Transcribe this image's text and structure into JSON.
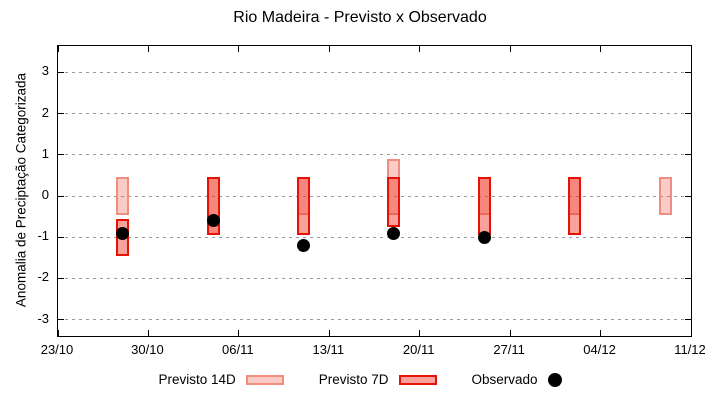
{
  "chart_data": {
    "type": "candlestick",
    "title": "Rio Madeira - Previsto x Observado",
    "ylabel": "Anomalia de Preciptação Categorizada",
    "xlabel": "",
    "x_ticks": [
      "23/10",
      "30/10",
      "06/11",
      "13/11",
      "20/11",
      "27/11",
      "04/12",
      "11/12"
    ],
    "x_tick_interval_days": 7,
    "y_ticks": [
      {
        "value": 3,
        "label": "3"
      },
      {
        "value": 2,
        "label": "2"
      },
      {
        "value": 1,
        "label": "1"
      },
      {
        "value": 0,
        "label": "0"
      },
      {
        "value": -1,
        "label": "-1"
      },
      {
        "value": -2,
        "label": "-2"
      },
      {
        "value": -3,
        "label": "-3"
      }
    ],
    "ylim": [
      -3.4,
      3.65
    ],
    "grid": "horizontal-dashed",
    "legend_position": "bottom-center",
    "colors": {
      "previsto_14d_fill": "#fbcbc6",
      "previsto_14d_border": "#f08c80",
      "previsto_7d_fill": "#f8a19a",
      "previsto_7d_border": "#e81105",
      "overlap_fill": "#f5867d",
      "observado": "#000000",
      "grid": "#9a9a9a"
    },
    "groups": [
      {
        "day": 5,
        "previsto_14d": [
          0.45,
          -0.45
        ],
        "previsto_7d": [
          -0.55,
          -1.45
        ],
        "observado": -0.9
      },
      {
        "day": 12,
        "previsto_14d": [
          0.45,
          -0.95
        ],
        "previsto_7d": [
          0.45,
          -0.95
        ],
        "observado": -0.6
      },
      {
        "day": 19,
        "previsto_14d": [
          0.45,
          -0.45
        ],
        "previsto_7d": [
          0.45,
          -0.95
        ],
        "observado": -1.2
      },
      {
        "day": 26,
        "previsto_14d": [
          0.9,
          -0.45
        ],
        "previsto_7d": [
          0.45,
          -0.75
        ],
        "observado": -0.9
      },
      {
        "day": 33,
        "previsto_14d": [
          0.45,
          -0.45
        ],
        "previsto_7d": [
          0.45,
          -0.95
        ],
        "observado": -1.0
      },
      {
        "day": 40,
        "previsto_14d": [
          0.45,
          -0.45
        ],
        "previsto_7d": [
          0.45,
          -0.95
        ],
        "observado": null
      },
      {
        "day": 47,
        "previsto_14d": [
          0.45,
          -0.45
        ],
        "previsto_7d": null,
        "observado": null
      }
    ],
    "legend_items": [
      {
        "label": "Previsto 14D",
        "marker": "box-light"
      },
      {
        "label": "Previsto 7D",
        "marker": "box-dark"
      },
      {
        "label": "Observado",
        "marker": "dot"
      }
    ]
  }
}
